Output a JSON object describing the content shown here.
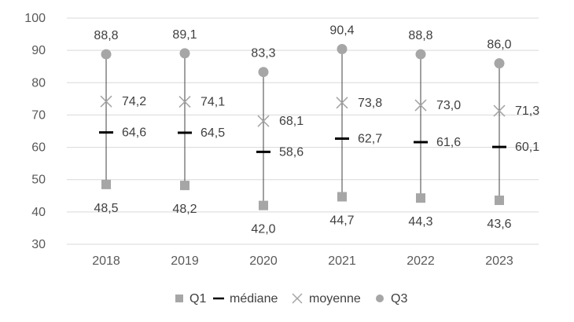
{
  "chart_data": {
    "type": "scatter",
    "title": "",
    "xlabel": "",
    "ylabel": "",
    "categories": [
      "2018",
      "2019",
      "2020",
      "2021",
      "2022",
      "2023"
    ],
    "ylim": [
      30,
      100
    ],
    "yticks": [
      "30",
      "40",
      "50",
      "60",
      "70",
      "80",
      "90",
      "100"
    ],
    "grid": true,
    "legend_position": "bottom",
    "series": [
      {
        "key": "q1",
        "name": "Q1",
        "marker": "square",
        "color": "#a6a6a6",
        "values": [
          48.5,
          48.2,
          42.0,
          44.7,
          44.3,
          43.6
        ],
        "labels": [
          "48,5",
          "48,2",
          "42,0",
          "44,7",
          "44,3",
          "43,6"
        ]
      },
      {
        "key": "mediane",
        "name": "médiane",
        "marker": "dash",
        "color": "#000000",
        "values": [
          64.6,
          64.5,
          58.6,
          62.7,
          61.6,
          60.1
        ],
        "labels": [
          "64,6",
          "64,5",
          "58,6",
          "62,7",
          "61,6",
          "60,1"
        ]
      },
      {
        "key": "moyenne",
        "name": "moyenne",
        "marker": "x",
        "color": "#a6a6a6",
        "values": [
          74.2,
          74.1,
          68.1,
          73.8,
          73.0,
          71.3
        ],
        "labels": [
          "74,2",
          "74,1",
          "68,1",
          "73,8",
          "73,0",
          "71,3"
        ]
      },
      {
        "key": "q3",
        "name": "Q3",
        "marker": "circle",
        "color": "#a6a6a6",
        "values": [
          88.8,
          89.1,
          83.3,
          90.4,
          88.8,
          86.0
        ],
        "labels": [
          "88,8",
          "89,1",
          "83,3",
          "90,4",
          "88,8",
          "86,0"
        ]
      }
    ],
    "range_line": {
      "from": "q1",
      "to": "q3",
      "color": "#404040"
    },
    "colors": {
      "grid": "#d9d9d9",
      "axis_text": "#595959",
      "label_text": "#404040"
    }
  }
}
